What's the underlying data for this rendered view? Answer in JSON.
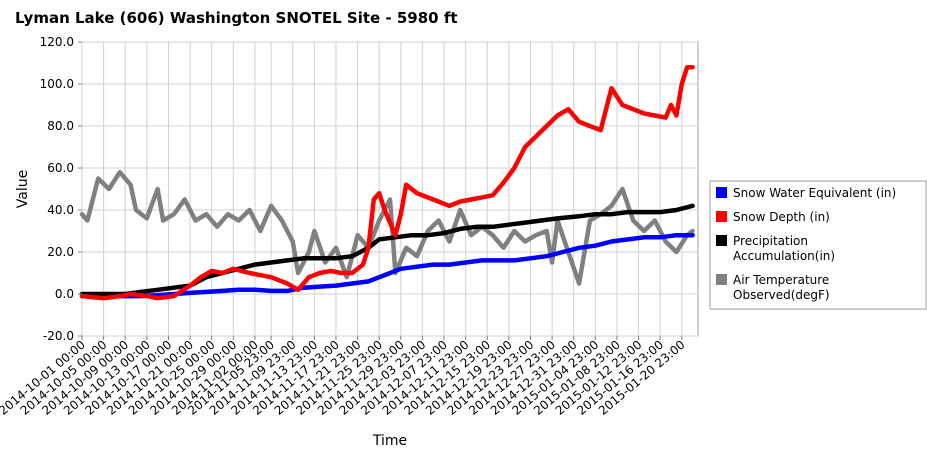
{
  "chart_data": {
    "type": "line",
    "title": "Lyman Lake (606) Washington  SNOTEL Site - 5980 ft",
    "xlabel": "Time",
    "ylabel": "Value",
    "ylim": [
      -20,
      120
    ],
    "yticks": [
      "-20.0",
      "0.0",
      "20.0",
      "40.0",
      "60.0",
      "80.0",
      "100.0",
      "120.0"
    ],
    "ytick_values": [
      -20,
      0,
      20,
      40,
      60,
      80,
      100,
      120
    ],
    "x_start": "2014-10-01",
    "x_end": "2015-01-23",
    "xticks": [
      "2014-10-01 00:00",
      "2014-10-05 00:00",
      "2014-10-09 00:00",
      "2014-10-13 00:00",
      "2014-10-17 00:00",
      "2014-10-21 00:00",
      "2014-10-25 00:00",
      "2014-10-29 00:00",
      "2014-11-02 00:00",
      "2014-11-05 23:00",
      "2014-11-09 23:00",
      "2014-11-13 23:00",
      "2014-11-17 23:00",
      "2014-11-21 23:00",
      "2014-11-25 23:00",
      "2014-11-29 23:00",
      "2014-12-03 23:00",
      "2014-12-07 23:00",
      "2014-12-11 23:00",
      "2014-12-15 23:00",
      "2014-12-19 23:00",
      "2014-12-23 23:00",
      "2014-12-27 23:00",
      "2014-12-31 23:00",
      "2015-01-04 23:00",
      "2015-01-08 23:00",
      "2015-01-12 23:00",
      "2015-01-16 23:00",
      "2015-01-20 23:00"
    ],
    "xtick_dates": [
      "2014-10-01",
      "2014-10-05",
      "2014-10-09",
      "2014-10-13",
      "2014-10-17",
      "2014-10-21",
      "2014-10-25",
      "2014-10-29",
      "2014-11-02",
      "2014-11-05",
      "2014-11-09",
      "2014-11-13",
      "2014-11-17",
      "2014-11-21",
      "2014-11-25",
      "2014-11-29",
      "2014-12-03",
      "2014-12-07",
      "2014-12-11",
      "2014-12-15",
      "2014-12-19",
      "2014-12-23",
      "2014-12-27",
      "2014-12-31",
      "2015-01-04",
      "2015-01-08",
      "2015-01-12",
      "2015-01-16",
      "2015-01-20"
    ],
    "grid": true,
    "legend_position": "right",
    "series": [
      {
        "name": "Snow Water Equivalent (in)",
        "color": "#0000ff",
        "x": [
          "2014-10-01",
          "2014-10-12",
          "2014-10-15",
          "2014-10-18",
          "2014-10-21",
          "2014-10-24",
          "2014-10-27",
          "2014-10-30",
          "2014-11-02",
          "2014-11-05",
          "2014-11-08",
          "2014-11-11",
          "2014-11-14",
          "2014-11-17",
          "2014-11-20",
          "2014-11-23",
          "2014-11-26",
          "2014-11-29",
          "2014-12-02",
          "2014-12-05",
          "2014-12-08",
          "2014-12-11",
          "2014-12-14",
          "2014-12-17",
          "2014-12-20",
          "2014-12-23",
          "2014-12-26",
          "2014-12-29",
          "2015-01-01",
          "2015-01-04",
          "2015-01-07",
          "2015-01-10",
          "2015-01-13",
          "2015-01-16",
          "2015-01-19",
          "2015-01-22"
        ],
        "values": [
          -1,
          -1,
          -0.5,
          0,
          0.5,
          1,
          1.5,
          2,
          2,
          1.5,
          1.5,
          3,
          3.5,
          4,
          5,
          6,
          9,
          12,
          13,
          14,
          14,
          15,
          16,
          16,
          16,
          17,
          18,
          20,
          22,
          23,
          25,
          26,
          27,
          27,
          28,
          28
        ]
      },
      {
        "name": "Snow Depth (in)",
        "color": "#ff0000",
        "x": [
          "2014-10-01",
          "2014-10-05",
          "2014-10-08",
          "2014-10-10",
          "2014-10-13",
          "2014-10-15",
          "2014-10-18",
          "2014-10-21",
          "2014-10-23",
          "2014-10-25",
          "2014-10-27",
          "2014-10-29",
          "2014-11-01",
          "2014-11-03",
          "2014-11-05",
          "2014-11-08",
          "2014-11-10",
          "2014-11-12",
          "2014-11-14",
          "2014-11-16",
          "2014-11-18",
          "2014-11-20",
          "2014-11-22",
          "2014-11-23",
          "2014-11-24",
          "2014-11-25",
          "2014-11-26",
          "2014-11-28",
          "2014-11-29",
          "2014-11-30",
          "2014-12-02",
          "2014-12-04",
          "2014-12-06",
          "2014-12-08",
          "2014-12-10",
          "2014-12-12",
          "2014-12-14",
          "2014-12-16",
          "2014-12-18",
          "2014-12-20",
          "2014-12-22",
          "2014-12-24",
          "2014-12-26",
          "2014-12-28",
          "2014-12-30",
          "2015-01-01",
          "2015-01-03",
          "2015-01-05",
          "2015-01-07",
          "2015-01-09",
          "2015-01-11",
          "2015-01-13",
          "2015-01-15",
          "2015-01-17",
          "2015-01-18",
          "2015-01-19",
          "2015-01-20",
          "2015-01-21",
          "2015-01-22"
        ],
        "values": [
          -1,
          -2,
          -1,
          0,
          -1,
          -2,
          -1,
          4,
          8,
          11,
          10,
          12,
          10,
          9,
          8,
          5,
          2,
          8,
          10,
          11,
          10,
          10,
          14,
          22,
          45,
          48,
          40,
          28,
          38,
          52,
          48,
          46,
          44,
          42,
          44,
          45,
          46,
          47,
          53,
          60,
          70,
          75,
          80,
          85,
          88,
          82,
          80,
          78,
          98,
          90,
          88,
          86,
          85,
          84,
          90,
          85,
          100,
          108,
          108
        ]
      },
      {
        "name": "Precipitation Accumulation(in)",
        "color": "#000000",
        "x": [
          "2014-10-01",
          "2014-10-09",
          "2014-10-12",
          "2014-10-15",
          "2014-10-18",
          "2014-10-21",
          "2014-10-24",
          "2014-10-27",
          "2014-10-30",
          "2014-11-02",
          "2014-11-05",
          "2014-11-08",
          "2014-11-11",
          "2014-11-14",
          "2014-11-17",
          "2014-11-20",
          "2014-11-23",
          "2014-11-25",
          "2014-11-28",
          "2014-12-01",
          "2014-12-04",
          "2014-12-07",
          "2014-12-10",
          "2014-12-13",
          "2014-12-16",
          "2014-12-19",
          "2014-12-22",
          "2014-12-25",
          "2014-12-28",
          "2015-01-01",
          "2015-01-04",
          "2015-01-07",
          "2015-01-10",
          "2015-01-13",
          "2015-01-16",
          "2015-01-19",
          "2015-01-22"
        ],
        "values": [
          0,
          0,
          1,
          2,
          3,
          4,
          8,
          10,
          12,
          14,
          15,
          16,
          17,
          17,
          17,
          18,
          22,
          26,
          27,
          28,
          28,
          29,
          31,
          32,
          32,
          33,
          34,
          35,
          36,
          37,
          38,
          38,
          39,
          39,
          39,
          40,
          42
        ]
      },
      {
        "name": "Air Temperature Observed(degF)",
        "color": "#808080",
        "x": [
          "2014-10-01",
          "2014-10-02",
          "2014-10-03",
          "2014-10-04",
          "2014-10-06",
          "2014-10-08",
          "2014-10-10",
          "2014-10-11",
          "2014-10-13",
          "2014-10-15",
          "2014-10-16",
          "2014-10-18",
          "2014-10-20",
          "2014-10-22",
          "2014-10-24",
          "2014-10-26",
          "2014-10-28",
          "2014-10-30",
          "2014-11-01",
          "2014-11-03",
          "2014-11-05",
          "2014-11-07",
          "2014-11-09",
          "2014-11-10",
          "2014-11-12",
          "2014-11-13",
          "2014-11-15",
          "2014-11-17",
          "2014-11-19",
          "2014-11-21",
          "2014-11-23",
          "2014-11-25",
          "2014-11-27",
          "2014-11-28",
          "2014-11-30",
          "2014-12-02",
          "2014-12-04",
          "2014-12-06",
          "2014-12-08",
          "2014-12-10",
          "2014-12-12",
          "2014-12-14",
          "2014-12-16",
          "2014-12-18",
          "2014-12-20",
          "2014-12-22",
          "2014-12-24",
          "2014-12-26",
          "2014-12-27",
          "2014-12-28",
          "2014-12-30",
          "2015-01-01",
          "2015-01-03",
          "2015-01-05",
          "2015-01-07",
          "2015-01-09",
          "2015-01-11",
          "2015-01-13",
          "2015-01-15",
          "2015-01-17",
          "2015-01-19",
          "2015-01-21",
          "2015-01-22"
        ],
        "values": [
          38,
          35,
          45,
          55,
          50,
          58,
          52,
          40,
          36,
          50,
          35,
          38,
          45,
          35,
          38,
          32,
          38,
          35,
          40,
          30,
          42,
          35,
          25,
          10,
          20,
          30,
          15,
          22,
          8,
          28,
          22,
          35,
          45,
          10,
          22,
          18,
          30,
          35,
          25,
          40,
          28,
          32,
          28,
          22,
          30,
          25,
          28,
          30,
          15,
          35,
          20,
          5,
          35,
          38,
          42,
          50,
          35,
          30,
          35,
          25,
          20,
          28,
          30
        ]
      }
    ]
  }
}
